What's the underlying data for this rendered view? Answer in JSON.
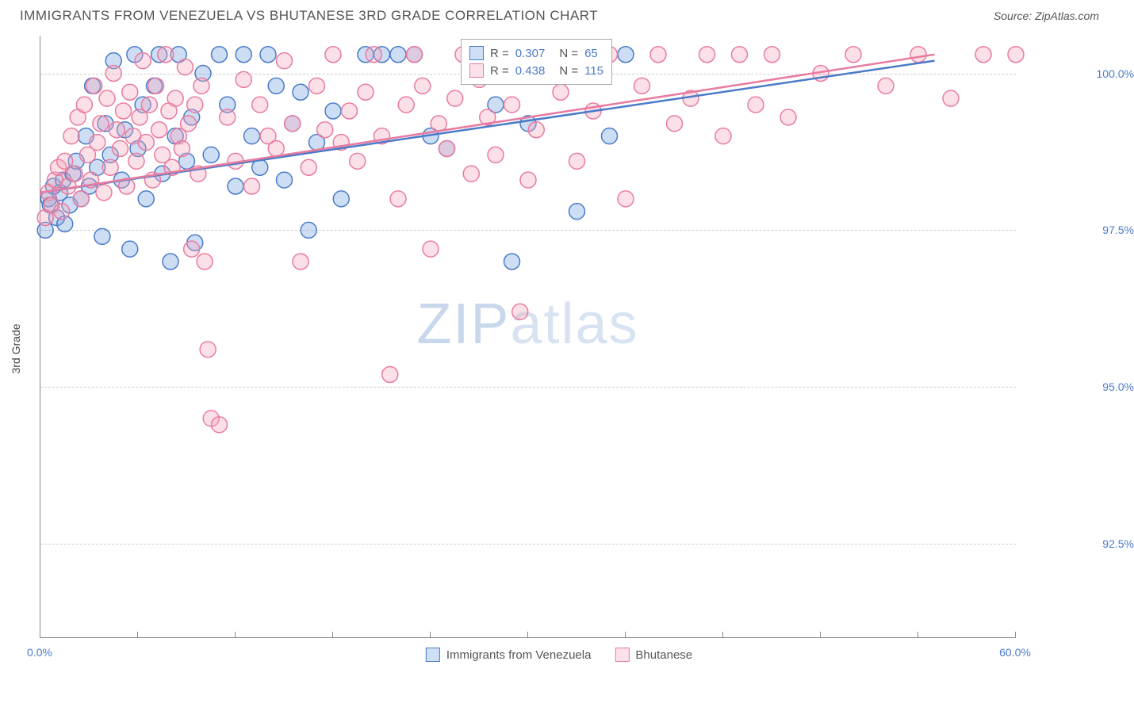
{
  "title": "IMMIGRANTS FROM VENEZUELA VS BHUTANESE 3RD GRADE CORRELATION CHART",
  "source_prefix": "Source: ",
  "source_name": "ZipAtlas.com",
  "y_axis_label": "3rd Grade",
  "watermark_bold": "ZIP",
  "watermark_light": "atlas",
  "chart": {
    "type": "scatter",
    "background_color": "#ffffff",
    "grid_color": "#cccccc",
    "axis_color": "#888888",
    "tick_label_color": "#4a7bc8",
    "xlim": [
      0,
      60
    ],
    "ylim": [
      91.0,
      100.6
    ],
    "x_ticks": [
      0,
      6,
      12,
      18,
      24,
      30,
      36,
      42,
      48,
      54,
      60
    ],
    "x_tick_labels": {
      "0": "0.0%",
      "60": "60.0%"
    },
    "y_ticks": [
      92.5,
      95.0,
      97.5,
      100.0
    ],
    "y_tick_labels": [
      "92.5%",
      "95.0%",
      "97.5%",
      "100.0%"
    ],
    "marker_radius": 10,
    "marker_fill_opacity": 0.35,
    "marker_stroke_width": 1.5,
    "trend_line_width": 2.5
  },
  "series": [
    {
      "name": "Immigrants from Venezuela",
      "color_fill": "#6fa0e0",
      "color_stroke": "#4a7bc8",
      "R": "0.307",
      "N": "65",
      "trend": {
        "x1": 0,
        "y1": 98.1,
        "x2": 55,
        "y2": 100.2
      },
      "points": [
        [
          0.3,
          97.5
        ],
        [
          0.5,
          98.0
        ],
        [
          0.6,
          97.9
        ],
        [
          0.8,
          98.2
        ],
        [
          1.0,
          97.7
        ],
        [
          1.2,
          98.1
        ],
        [
          1.4,
          98.3
        ],
        [
          1.5,
          97.6
        ],
        [
          1.8,
          97.9
        ],
        [
          2.0,
          98.4
        ],
        [
          2.2,
          98.6
        ],
        [
          2.5,
          98.0
        ],
        [
          2.8,
          99.0
        ],
        [
          3.0,
          98.2
        ],
        [
          3.2,
          99.8
        ],
        [
          3.5,
          98.5
        ],
        [
          3.8,
          97.4
        ],
        [
          4.0,
          99.2
        ],
        [
          4.3,
          98.7
        ],
        [
          4.5,
          100.2
        ],
        [
          5.0,
          98.3
        ],
        [
          5.2,
          99.1
        ],
        [
          5.5,
          97.2
        ],
        [
          5.8,
          100.3
        ],
        [
          6.0,
          98.8
        ],
        [
          6.3,
          99.5
        ],
        [
          6.5,
          98.0
        ],
        [
          7.0,
          99.8
        ],
        [
          7.3,
          100.3
        ],
        [
          7.5,
          98.4
        ],
        [
          8.0,
          97.0
        ],
        [
          8.3,
          99.0
        ],
        [
          8.5,
          100.3
        ],
        [
          9.0,
          98.6
        ],
        [
          9.3,
          99.3
        ],
        [
          9.5,
          97.3
        ],
        [
          10.0,
          100.0
        ],
        [
          10.5,
          98.7
        ],
        [
          11.0,
          100.3
        ],
        [
          11.5,
          99.5
        ],
        [
          12.0,
          98.2
        ],
        [
          12.5,
          100.3
        ],
        [
          13.0,
          99.0
        ],
        [
          13.5,
          98.5
        ],
        [
          14.0,
          100.3
        ],
        [
          14.5,
          99.8
        ],
        [
          15.0,
          98.3
        ],
        [
          15.5,
          99.2
        ],
        [
          16.0,
          99.7
        ],
        [
          16.5,
          97.5
        ],
        [
          17.0,
          98.9
        ],
        [
          18.0,
          99.4
        ],
        [
          18.5,
          98.0
        ],
        [
          20.0,
          100.3
        ],
        [
          21.0,
          100.3
        ],
        [
          22.0,
          100.3
        ],
        [
          23.0,
          100.3
        ],
        [
          24.0,
          99.0
        ],
        [
          25.0,
          98.8
        ],
        [
          28.0,
          99.5
        ],
        [
          29.0,
          97.0
        ],
        [
          30.0,
          99.2
        ],
        [
          33.0,
          97.8
        ],
        [
          35.0,
          99.0
        ],
        [
          36.0,
          100.3
        ]
      ]
    },
    {
      "name": "Bhutanese",
      "color_fill": "#f5a7bb",
      "color_stroke": "#e87ba0",
      "R": "0.438",
      "N": "115",
      "trend": {
        "x1": 0,
        "y1": 98.1,
        "x2": 55,
        "y2": 100.3
      },
      "points": [
        [
          0.3,
          97.7
        ],
        [
          0.5,
          98.1
        ],
        [
          0.7,
          97.9
        ],
        [
          0.9,
          98.3
        ],
        [
          1.1,
          98.5
        ],
        [
          1.3,
          97.8
        ],
        [
          1.5,
          98.6
        ],
        [
          1.7,
          98.2
        ],
        [
          1.9,
          99.0
        ],
        [
          2.1,
          98.4
        ],
        [
          2.3,
          99.3
        ],
        [
          2.5,
          98.0
        ],
        [
          2.7,
          99.5
        ],
        [
          2.9,
          98.7
        ],
        [
          3.1,
          98.3
        ],
        [
          3.3,
          99.8
        ],
        [
          3.5,
          98.9
        ],
        [
          3.7,
          99.2
        ],
        [
          3.9,
          98.1
        ],
        [
          4.1,
          99.6
        ],
        [
          4.3,
          98.5
        ],
        [
          4.5,
          100.0
        ],
        [
          4.7,
          99.1
        ],
        [
          4.9,
          98.8
        ],
        [
          5.1,
          99.4
        ],
        [
          5.3,
          98.2
        ],
        [
          5.5,
          99.7
        ],
        [
          5.7,
          99.0
        ],
        [
          5.9,
          98.6
        ],
        [
          6.1,
          99.3
        ],
        [
          6.3,
          100.2
        ],
        [
          6.5,
          98.9
        ],
        [
          6.7,
          99.5
        ],
        [
          6.9,
          98.3
        ],
        [
          7.1,
          99.8
        ],
        [
          7.3,
          99.1
        ],
        [
          7.5,
          98.7
        ],
        [
          7.7,
          100.3
        ],
        [
          7.9,
          99.4
        ],
        [
          8.1,
          98.5
        ],
        [
          8.3,
          99.6
        ],
        [
          8.5,
          99.0
        ],
        [
          8.7,
          98.8
        ],
        [
          8.9,
          100.1
        ],
        [
          9.1,
          99.2
        ],
        [
          9.3,
          97.2
        ],
        [
          9.5,
          99.5
        ],
        [
          9.7,
          98.4
        ],
        [
          9.9,
          99.8
        ],
        [
          10.1,
          97.0
        ],
        [
          10.3,
          95.6
        ],
        [
          10.5,
          94.5
        ],
        [
          11.0,
          94.4
        ],
        [
          11.5,
          99.3
        ],
        [
          12.0,
          98.6
        ],
        [
          12.5,
          99.9
        ],
        [
          13.0,
          98.2
        ],
        [
          13.5,
          99.5
        ],
        [
          14.0,
          99.0
        ],
        [
          14.5,
          98.8
        ],
        [
          15.0,
          100.2
        ],
        [
          15.5,
          99.2
        ],
        [
          16.0,
          97.0
        ],
        [
          16.5,
          98.5
        ],
        [
          17.0,
          99.8
        ],
        [
          17.5,
          99.1
        ],
        [
          18.0,
          100.3
        ],
        [
          18.5,
          98.9
        ],
        [
          19.0,
          99.4
        ],
        [
          19.5,
          98.6
        ],
        [
          20.0,
          99.7
        ],
        [
          20.5,
          100.3
        ],
        [
          21.0,
          99.0
        ],
        [
          21.5,
          95.2
        ],
        [
          22.0,
          98.0
        ],
        [
          22.5,
          99.5
        ],
        [
          23.0,
          100.3
        ],
        [
          23.5,
          99.8
        ],
        [
          24.0,
          97.2
        ],
        [
          24.5,
          99.2
        ],
        [
          25.0,
          98.8
        ],
        [
          25.5,
          99.6
        ],
        [
          26.0,
          100.3
        ],
        [
          26.5,
          98.4
        ],
        [
          27.0,
          99.9
        ],
        [
          27.5,
          99.3
        ],
        [
          28.0,
          98.7
        ],
        [
          28.5,
          100.0
        ],
        [
          29.0,
          99.5
        ],
        [
          29.5,
          96.2
        ],
        [
          30.0,
          98.3
        ],
        [
          30.5,
          99.1
        ],
        [
          31.0,
          100.3
        ],
        [
          32.0,
          99.7
        ],
        [
          33.0,
          98.6
        ],
        [
          34.0,
          99.4
        ],
        [
          35.0,
          100.3
        ],
        [
          36.0,
          98.0
        ],
        [
          37.0,
          99.8
        ],
        [
          38.0,
          100.3
        ],
        [
          39.0,
          99.2
        ],
        [
          40.0,
          99.6
        ],
        [
          41.0,
          100.3
        ],
        [
          42.0,
          99.0
        ],
        [
          43.0,
          100.3
        ],
        [
          44.0,
          99.5
        ],
        [
          45.0,
          100.3
        ],
        [
          46.0,
          99.3
        ],
        [
          48.0,
          100.0
        ],
        [
          50.0,
          100.3
        ],
        [
          52.0,
          99.8
        ],
        [
          54.0,
          100.3
        ],
        [
          56.0,
          99.6
        ],
        [
          58.0,
          100.3
        ],
        [
          60.0,
          100.3
        ]
      ]
    }
  ],
  "stats_labels": {
    "R": "R =",
    "N": "N ="
  },
  "legend": {
    "series_a": "Immigrants from Venezuela",
    "series_b": "Bhutanese"
  }
}
